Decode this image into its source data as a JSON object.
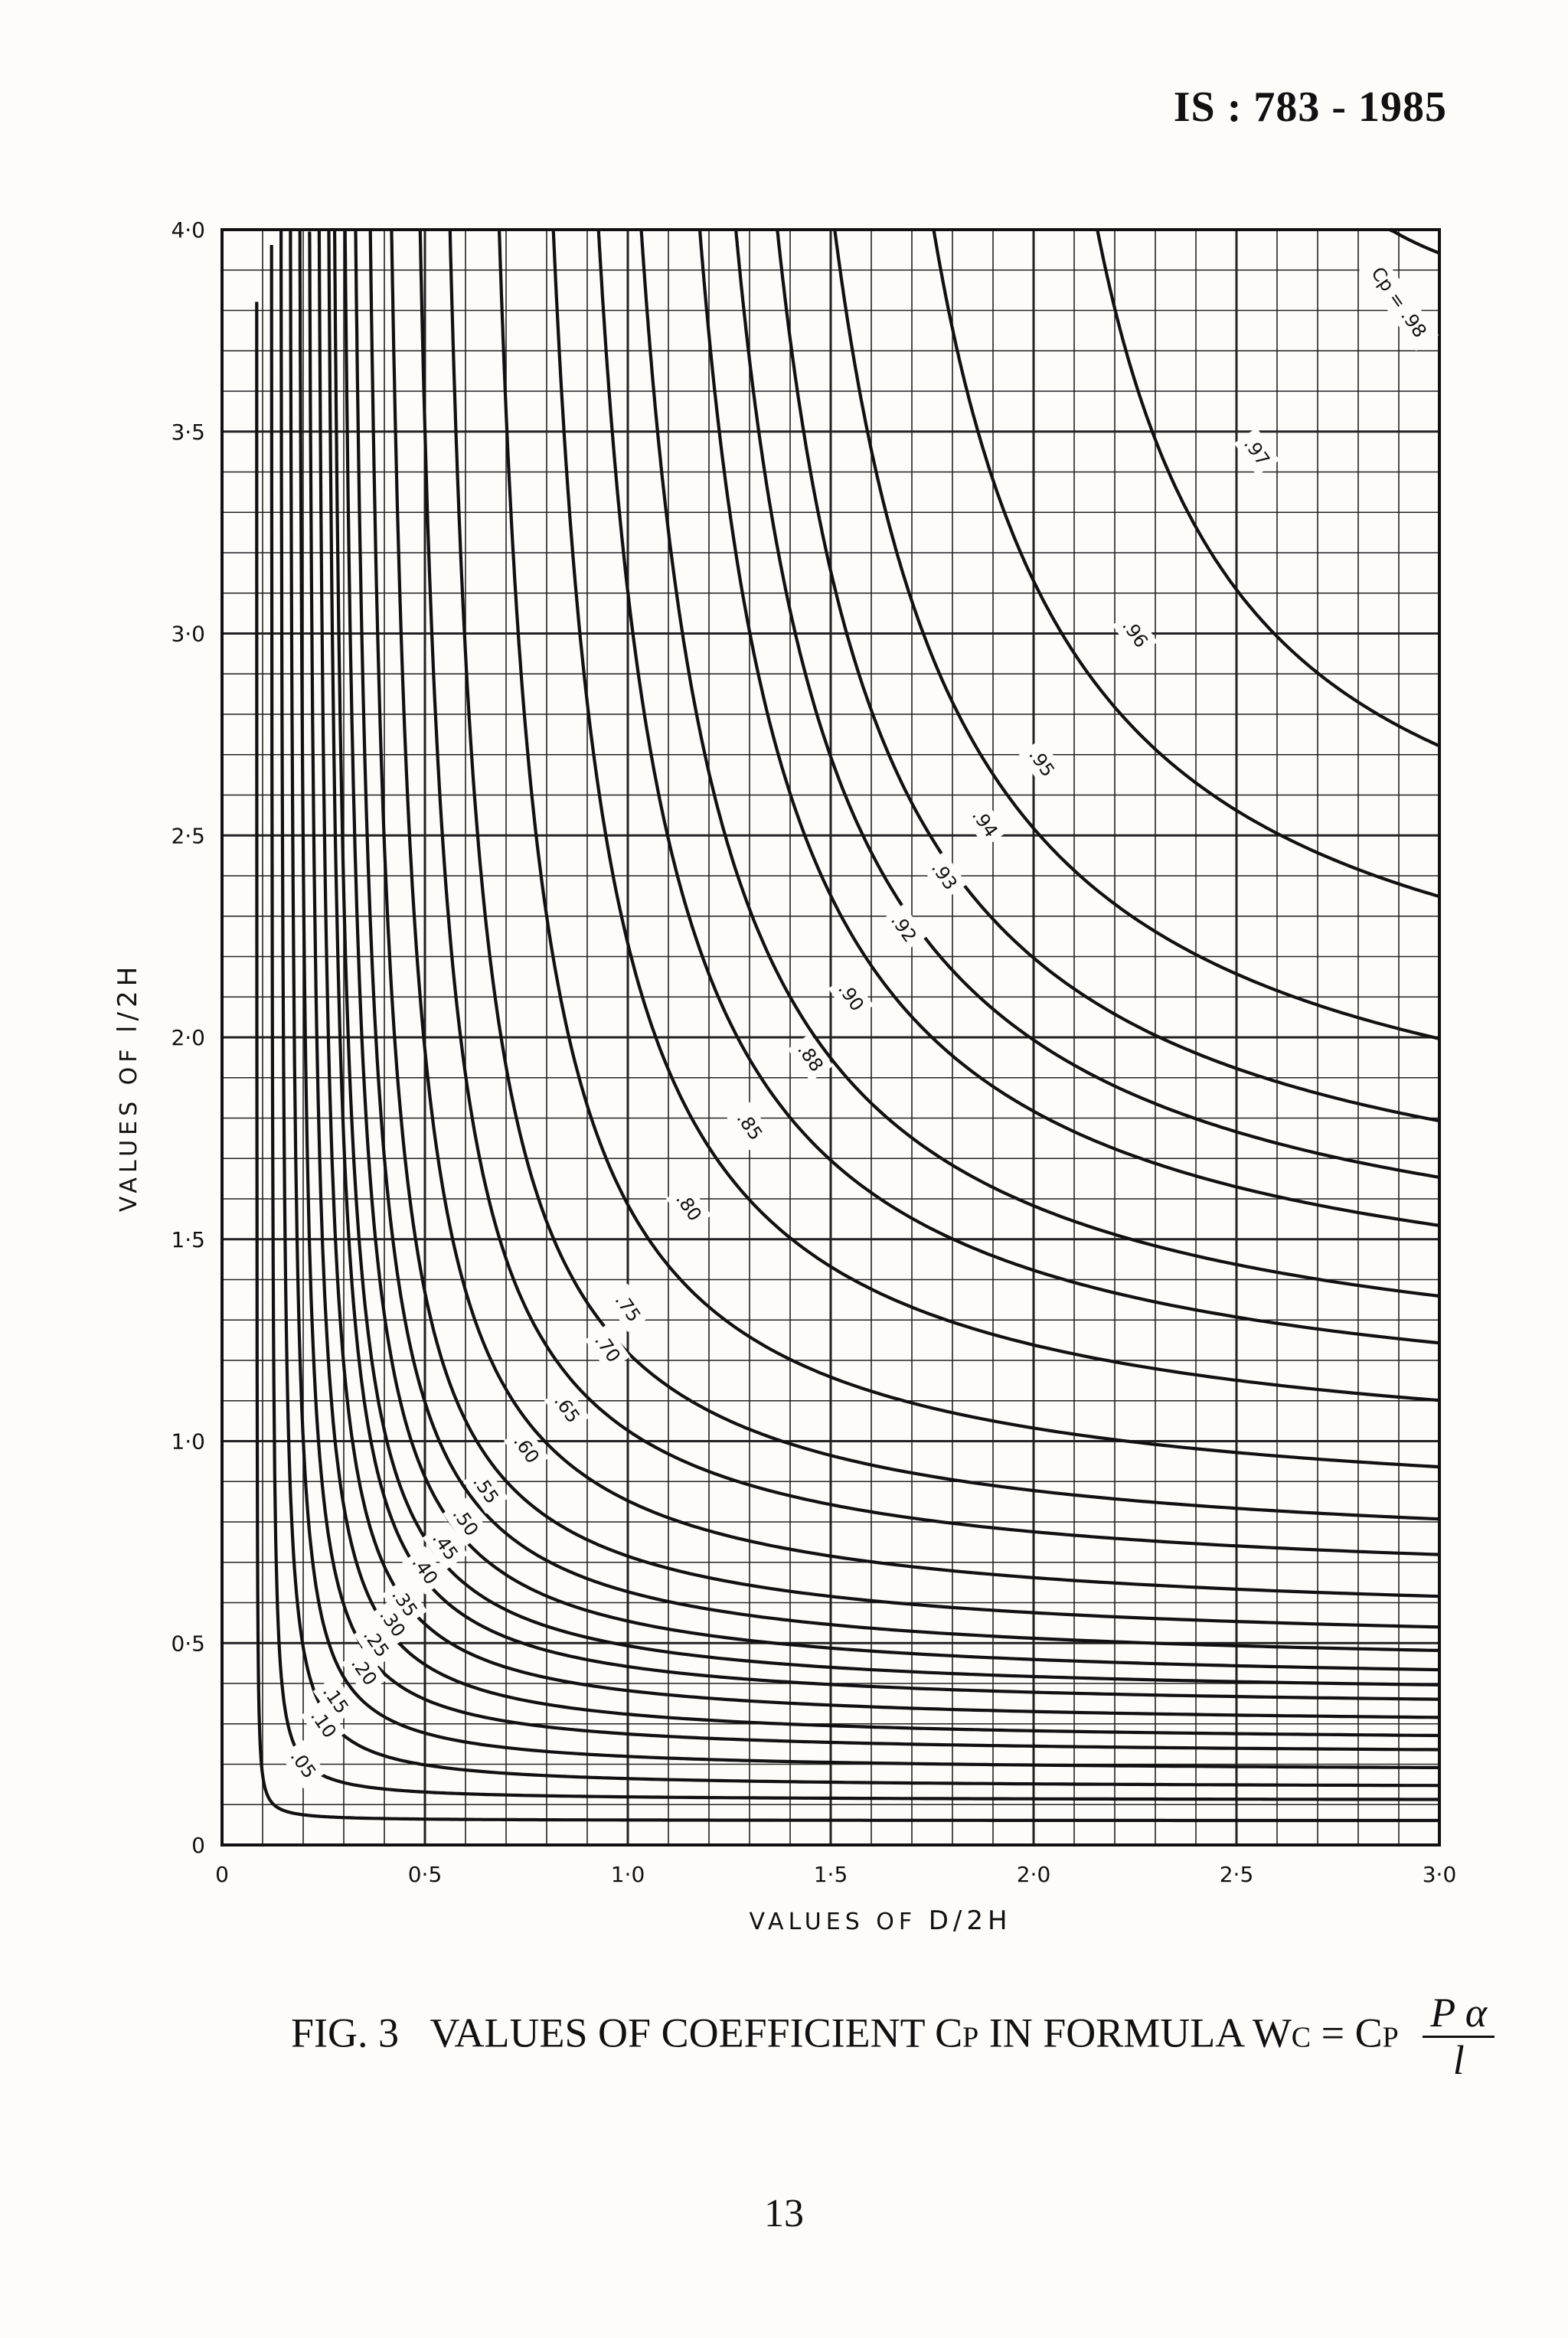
{
  "header": {
    "standard_code": "IS : 783 - 1985"
  },
  "chart_data": {
    "type": "line",
    "xlabel": "VALUES OF D/2H",
    "xlabel_main": "VALUES OF ",
    "xlabel_var": "D/2H",
    "ylabel": "VALUES OF l/2H",
    "ylabel_main": "VALUES OF ",
    "ylabel_var": "l/2H",
    "xlim": [
      0,
      3.0
    ],
    "ylim": [
      0,
      4.0
    ],
    "x_ticks": [
      {
        "value": 0,
        "label": "0"
      },
      {
        "value": 0.5,
        "label": "0·5"
      },
      {
        "value": 1.0,
        "label": "1·0"
      },
      {
        "value": 1.5,
        "label": "1·5"
      },
      {
        "value": 2.0,
        "label": "2·0"
      },
      {
        "value": 2.5,
        "label": "2·5"
      },
      {
        "value": 3.0,
        "label": "3·0"
      }
    ],
    "y_ticks": [
      {
        "value": 0,
        "label": "0"
      },
      {
        "value": 0.5,
        "label": "0·5"
      },
      {
        "value": 1.0,
        "label": "1·0"
      },
      {
        "value": 1.5,
        "label": "1·5"
      },
      {
        "value": 2.0,
        "label": "2·0"
      },
      {
        "value": 2.5,
        "label": "2·5"
      },
      {
        "value": 3.0,
        "label": "3·0"
      },
      {
        "value": 3.5,
        "label": "3·5"
      },
      {
        "value": 4.0,
        "label": "4·0"
      }
    ],
    "grid": true,
    "grid_step": 0.1,
    "series": [
      {
        "name": ".05",
        "xa": 0.085,
        "ya": 0.06,
        "k": 0.0017,
        "label_at": [
          0.2,
          0.2
        ]
      },
      {
        "name": ".10",
        "xa": 0.12,
        "ya": 0.11,
        "k": 0.008,
        "label_at": [
          0.25,
          0.3
        ]
      },
      {
        "name": ".15",
        "xa": 0.14,
        "ya": 0.14,
        "k": 0.021,
        "label_at": [
          0.28,
          0.36
        ]
      },
      {
        "name": ".20",
        "xa": 0.16,
        "ya": 0.18,
        "k": 0.033,
        "label_at": [
          0.35,
          0.43
        ]
      },
      {
        "name": ".25",
        "xa": 0.18,
        "ya": 0.22,
        "k": 0.045,
        "label_at": [
          0.38,
          0.5
        ]
      },
      {
        "name": ".30",
        "xa": 0.2,
        "ya": 0.25,
        "k": 0.059,
        "label_at": [
          0.42,
          0.55
        ]
      },
      {
        "name": ".35",
        "xa": 0.22,
        "ya": 0.29,
        "k": 0.072,
        "label_at": [
          0.45,
          0.6
        ]
      },
      {
        "name": ".40",
        "xa": 0.24,
        "ya": 0.33,
        "k": 0.085,
        "label_at": [
          0.5,
          0.68
        ]
      },
      {
        "name": ".45",
        "xa": 0.25,
        "ya": 0.36,
        "k": 0.1,
        "label_at": [
          0.55,
          0.74
        ]
      },
      {
        "name": ".50",
        "xa": 0.27,
        "ya": 0.39,
        "k": 0.12,
        "label_at": [
          0.6,
          0.8
        ]
      },
      {
        "name": ".55",
        "xa": 0.29,
        "ya": 0.43,
        "k": 0.14,
        "label_at": [
          0.65,
          0.88
        ]
      },
      {
        "name": ".60",
        "xa": 0.32,
        "ya": 0.48,
        "k": 0.16,
        "label_at": [
          0.75,
          0.98
        ]
      },
      {
        "name": ".65",
        "xa": 0.36,
        "ya": 0.54,
        "k": 0.2,
        "label_at": [
          0.85,
          1.08
        ]
      },
      {
        "name": ".70",
        "xa": 0.42,
        "ya": 0.63,
        "k": 0.23,
        "label_at": [
          0.95,
          1.23
        ]
      },
      {
        "name": ".75",
        "xa": 0.48,
        "ya": 0.7,
        "k": 0.27,
        "label_at": [
          1.0,
          1.33
        ]
      },
      {
        "name": ".80",
        "xa": 0.58,
        "ya": 0.8,
        "k": 0.33,
        "label_at": [
          1.15,
          1.58
        ]
      },
      {
        "name": ".85",
        "xa": 0.68,
        "ya": 0.92,
        "k": 0.42,
        "label_at": [
          1.3,
          1.78
        ]
      },
      {
        "name": ".88",
        "xa": 0.76,
        "ya": 1.02,
        "k": 0.5,
        "label_at": [
          1.45,
          1.95
        ]
      },
      {
        "name": ".90",
        "xa": 0.84,
        "ya": 1.1,
        "k": 0.56,
        "label_at": [
          1.55,
          2.1
        ]
      },
      {
        "name": ".92",
        "xa": 0.96,
        "ya": 1.24,
        "k": 0.6,
        "label_at": [
          1.68,
          2.27
        ]
      },
      {
        "name": ".93",
        "xa": 1.02,
        "ya": 1.32,
        "k": 0.66,
        "label_at": [
          1.78,
          2.4
        ]
      },
      {
        "name": ".94",
        "xa": 1.1,
        "ya": 1.43,
        "k": 0.69,
        "label_at": [
          1.88,
          2.53
        ]
      },
      {
        "name": ".95",
        "xa": 1.2,
        "ya": 1.58,
        "k": 0.75,
        "label_at": [
          2.02,
          2.68
        ]
      },
      {
        "name": ".96",
        "xa": 1.4,
        "ya": 1.88,
        "k": 0.75,
        "label_at": [
          2.25,
          3.0
        ]
      },
      {
        "name": ".97",
        "xa": 1.8,
        "ya": 2.18,
        "k": 0.65,
        "label_at": [
          2.55,
          3.45
        ]
      },
      {
        "name": ".98",
        "xa": 2.38,
        "ya": 3.7,
        "k": 0.15,
        "label_at": [
          2.9,
          3.82
        ],
        "prefix": "Cp = "
      }
    ]
  },
  "caption": {
    "figure": "FIG. 3",
    "text": "VALUES OF COEFFICIENT Cp IN FORMULA Wc = Cp",
    "fraction_num": "P α",
    "fraction_den": "l"
  },
  "page_number": "13"
}
